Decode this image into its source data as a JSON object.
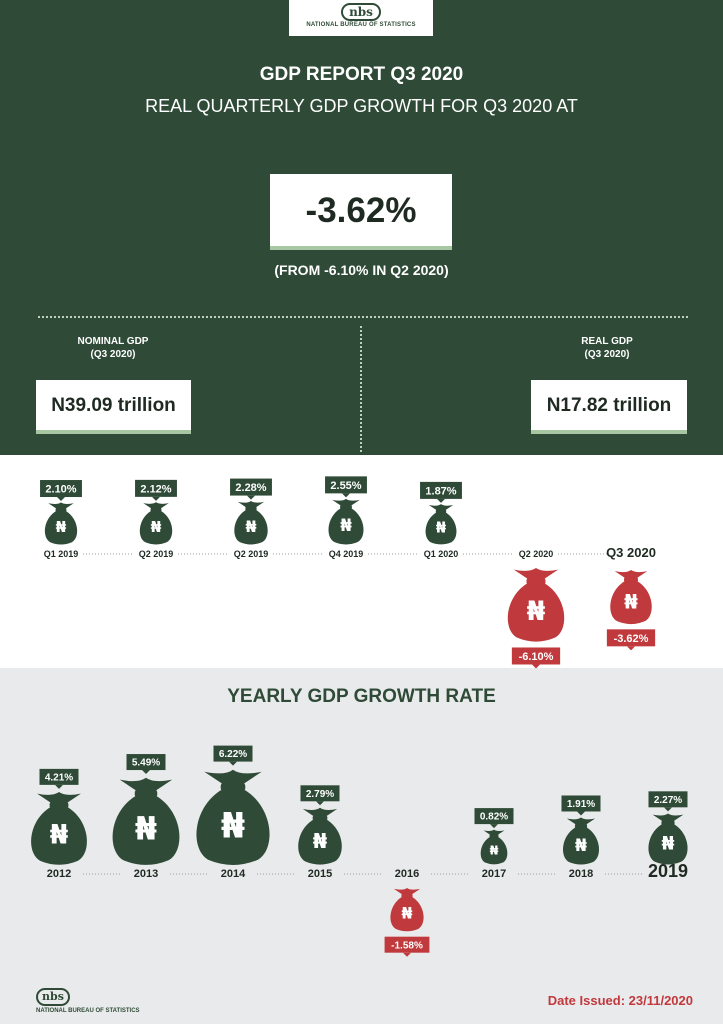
{
  "header": {
    "logo_text": "nbs",
    "logo_subtext": "NATIONAL BUREAU OF STATISTICS",
    "title": "GDP REPORT Q3 2020",
    "subtitle": "REAL QUARTERLY GDP GROWTH FOR Q3 2020 AT",
    "headline_value": "-3.62%",
    "from_text": "(FROM -6.10% IN Q2 2020)"
  },
  "nominal": {
    "label": "NOMINAL GDP",
    "period": "(Q3 2020)",
    "value": "N39.09 trillion"
  },
  "real": {
    "label": "REAL GDP",
    "period": "(Q3 2020)",
    "value": "N17.82 trillion"
  },
  "colors": {
    "dark_green": "#2f4b37",
    "red": "#c0393d",
    "accent_green": "#a7c7a2",
    "grey_bg": "#e9eaeb"
  },
  "icons": {
    "bag": "money-bag-naira-icon",
    "currency_symbol": "₦"
  },
  "chart_data": [
    {
      "type": "bar",
      "categories": [
        "Q1 2019",
        "Q2 2019",
        "Q2 2019",
        "Q4 2019",
        "Q1 2020",
        "Q2 2020",
        "Q3 2020"
      ],
      "values": [
        2.1,
        2.12,
        2.28,
        2.55,
        1.87,
        -6.1,
        -3.62
      ],
      "labels": [
        "2.10%",
        "2.12%",
        "2.28%",
        "2.55%",
        "1.87%",
        "-6.10%",
        "-3.62%"
      ],
      "highlight_category": "Q3 2020"
    },
    {
      "type": "bar",
      "title": "YEARLY GDP GROWTH RATE",
      "categories": [
        "2012",
        "2013",
        "2014",
        "2015",
        "2016",
        "2017",
        "2018",
        "2019"
      ],
      "values": [
        4.21,
        5.49,
        6.22,
        2.79,
        -1.58,
        0.82,
        1.91,
        2.27
      ],
      "labels": [
        "4.21%",
        "5.49%",
        "6.22%",
        "2.79%",
        "-1.58%",
        "0.82%",
        "1.91%",
        "2.27%"
      ],
      "highlight_category": "2019"
    }
  ],
  "footer": {
    "logo_text": "nbs",
    "logo_subtext": "NATIONAL BUREAU OF STATISTICS",
    "date_issued": "Date Issued: 23/11/2020"
  }
}
